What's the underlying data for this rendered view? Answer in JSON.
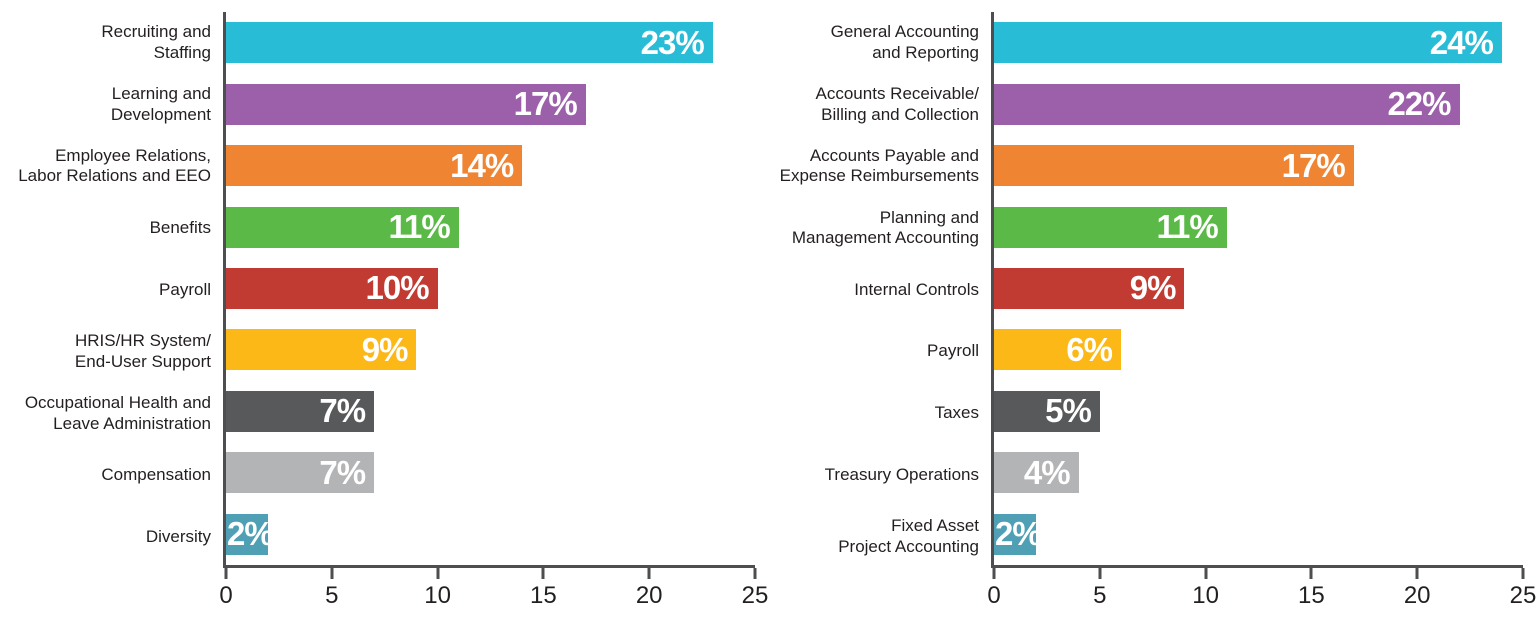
{
  "page": {
    "background": "#FFFFFF"
  },
  "colors": {
    "axis": "#4D4E50",
    "category_text": "#231F20",
    "tick_text": "#231F20",
    "value_text": "#FFFFFF"
  },
  "bar_palette": [
    "#29BCD6",
    "#9C5FA9",
    "#EF8533",
    "#5BB947",
    "#C23B33",
    "#FBB817",
    "#58595B",
    "#B3B4B6",
    "#4FA0B5"
  ],
  "chart_data": [
    {
      "id": "hr-functions",
      "type": "bar",
      "orientation": "horizontal",
      "categories": [
        [
          "Recruiting and",
          "Staffing"
        ],
        [
          "Learning and",
          "Development"
        ],
        [
          "Employee Relations,",
          "Labor Relations and EEO"
        ],
        [
          "Benefits"
        ],
        [
          "Payroll"
        ],
        [
          "HRIS/HR System/",
          "End-User Support"
        ],
        [
          "Occupational Health and",
          "Leave Administration"
        ],
        [
          "Compensation"
        ],
        [
          "Diversity"
        ]
      ],
      "values": [
        23,
        17,
        14,
        11,
        10,
        9,
        7,
        7,
        2
      ],
      "value_labels": [
        "23%",
        "17%",
        "14%",
        "11%",
        "10%",
        "9%",
        "7%",
        "7%",
        "2%"
      ],
      "bar_colors": [
        "#29BCD6",
        "#9C5FA9",
        "#EF8533",
        "#5BB947",
        "#C23B33",
        "#FBB817",
        "#58595B",
        "#B3B4B6",
        "#4FA0B5"
      ],
      "xlim": [
        0,
        25
      ],
      "xticks": [
        0,
        5,
        10,
        15,
        20,
        25
      ],
      "grid": false,
      "legend": "none",
      "value_label_position": "inside-right"
    },
    {
      "id": "accounting-functions",
      "type": "bar",
      "orientation": "horizontal",
      "categories": [
        [
          "General Accounting",
          "and Reporting"
        ],
        [
          "Accounts Receivable/",
          "Billing and Collection"
        ],
        [
          "Accounts Payable and",
          "Expense Reimbursements"
        ],
        [
          "Planning and",
          "Management Accounting"
        ],
        [
          "Internal Controls"
        ],
        [
          "Payroll"
        ],
        [
          "Taxes"
        ],
        [
          "Treasury Operations"
        ],
        [
          "Fixed Asset",
          "Project Accounting"
        ]
      ],
      "values": [
        24,
        22,
        17,
        11,
        9,
        6,
        5,
        4,
        2
      ],
      "value_labels": [
        "24%",
        "22%",
        "17%",
        "11%",
        "9%",
        "6%",
        "5%",
        "4%",
        "2%"
      ],
      "bar_colors": [
        "#29BCD6",
        "#9C5FA9",
        "#EF8533",
        "#5BB947",
        "#C23B33",
        "#FBB817",
        "#58595B",
        "#B3B4B6",
        "#4FA0B5"
      ],
      "xlim": [
        0,
        25
      ],
      "xticks": [
        0,
        5,
        10,
        15,
        20,
        25
      ],
      "grid": false,
      "legend": "none",
      "value_label_position": "inside-right"
    }
  ]
}
